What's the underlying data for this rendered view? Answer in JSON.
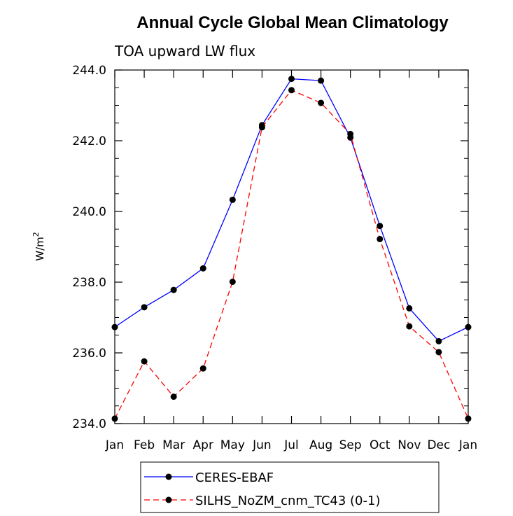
{
  "chart_data": {
    "type": "line",
    "title": "Annual Cycle Global Mean Climatology",
    "subtitle": "TOA upward LW flux",
    "ylabel": "W/m",
    "ylabel_superscript": "2",
    "xlabel": "",
    "categories": [
      "Jan",
      "Feb",
      "Mar",
      "Apr",
      "May",
      "Jun",
      "Jul",
      "Aug",
      "Sep",
      "Oct",
      "Nov",
      "Dec",
      "Jan"
    ],
    "ylim": [
      234.0,
      244.0
    ],
    "yticks": [
      "234.0",
      "236.0",
      "238.0",
      "240.0",
      "242.0",
      "244.0"
    ],
    "series": [
      {
        "name": "CERES-EBAF",
        "color": "#0000ff",
        "dash": "solid",
        "values": [
          236.73,
          237.29,
          237.78,
          238.39,
          240.33,
          242.44,
          243.75,
          243.7,
          242.09,
          239.59,
          237.26,
          236.33,
          236.73
        ]
      },
      {
        "name": "SILHS_NoZM_cnm_TC43 (0-1)",
        "color": "#ff0000",
        "dash": "dashed",
        "values": [
          234.14,
          235.76,
          234.76,
          235.56,
          238.01,
          242.38,
          243.43,
          243.07,
          242.19,
          239.22,
          236.75,
          236.02,
          234.14
        ]
      }
    ],
    "grid": false,
    "legend_position": "bottom"
  }
}
